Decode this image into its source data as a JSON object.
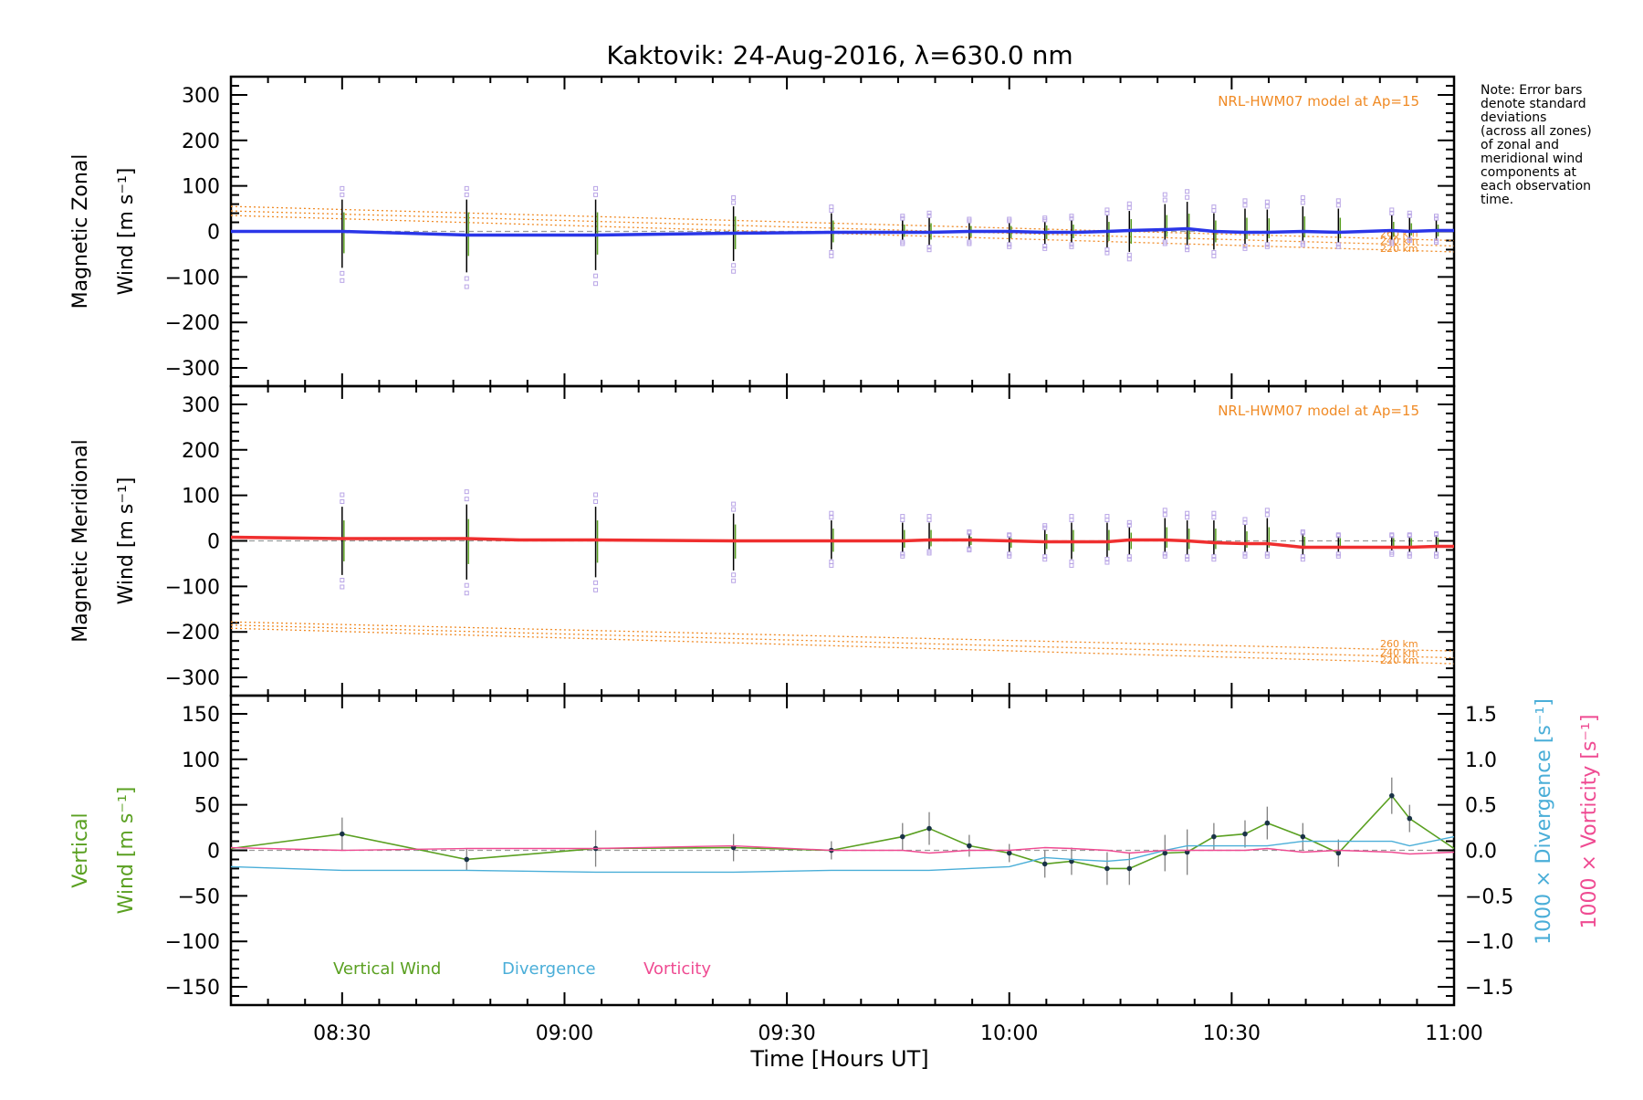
{
  "title": "Kaktovik: 24-Aug-2016, λ=630.0 nm",
  "xlabel": "Time [Hours UT]",
  "note_lines": [
    "Note: Error bars",
    "denote standard",
    "deviations",
    "(across all zones)",
    "of zonal and",
    "meridional wind",
    "components at",
    "each observation",
    "time."
  ],
  "model_label": "NRL-HWM07 model at Ap=15",
  "altitude_labels": [
    "260 km",
    "240 km",
    "220 km"
  ],
  "colors": {
    "zonal": "#2a36e8",
    "meridional": "#ef2f2f",
    "model": "#f08a24",
    "error_point": "#b9a5e6",
    "vertical": "#5aa021",
    "divergence": "#4aaed8",
    "vorticity": "#ef4b92",
    "marker": "#1a3347"
  },
  "chart_data": [
    {
      "type": "line",
      "panel": "zonal",
      "ylabel_line1": "Magnetic Zonal",
      "ylabel_line2": "Wind [m s⁻¹]",
      "xlim": [
        8.25,
        11.0
      ],
      "ylim": [
        -340,
        340
      ],
      "x_ticks": [
        "08:30",
        "09:00",
        "09:30",
        "10:00",
        "10:30",
        "11:00"
      ],
      "x_tick_values": [
        8.5,
        9.0,
        9.5,
        10.0,
        10.5,
        11.0
      ],
      "y_ticks": [
        300,
        200,
        100,
        0,
        -100,
        -200,
        -300
      ],
      "grid": false,
      "series": [
        {
          "name": "",
          "x": [
            8.25,
            8.5,
            8.78,
            9.07,
            9.38,
            9.6,
            9.76,
            9.82,
            9.91,
            10.0,
            10.08,
            10.15,
            10.22,
            10.27,
            10.35,
            10.4,
            10.46,
            10.53,
            10.58,
            10.66,
            10.74,
            10.86,
            10.9,
            10.96,
            11.0
          ],
          "y": [
            0,
            0,
            -8,
            -8,
            -4,
            -2,
            -2,
            -2,
            0,
            0,
            -2,
            -2,
            0,
            2,
            4,
            6,
            0,
            -2,
            -2,
            0,
            -2,
            2,
            0,
            2,
            2
          ]
        }
      ],
      "error_bars": {
        "x": [
          8.5,
          8.78,
          9.07,
          9.38,
          9.6,
          9.76,
          9.82,
          9.91,
          10.0,
          10.08,
          10.14,
          10.22,
          10.27,
          10.35,
          10.4,
          10.46,
          10.53,
          10.58,
          10.66,
          10.74,
          10.86,
          10.9,
          10.96
        ],
        "low": [
          -80,
          -90,
          -85,
          -65,
          -40,
          -20,
          -30,
          -20,
          -25,
          -28,
          -25,
          -35,
          -45,
          -20,
          -30,
          -40,
          -28,
          -25,
          -22,
          -25,
          -20,
          -15,
          -18
        ],
        "high": [
          70,
          70,
          70,
          55,
          40,
          25,
          30,
          20,
          20,
          22,
          25,
          35,
          45,
          60,
          65,
          40,
          50,
          48,
          55,
          50,
          35,
          30,
          25
        ]
      },
      "models": {
        "x": [
          8.25,
          11.0
        ],
        "260 km": [
          55,
          -20
        ],
        "240 km": [
          45,
          -32
        ],
        "220 km": [
          35,
          -45
        ]
      }
    },
    {
      "type": "line",
      "panel": "meridional",
      "ylabel_line1": "Magnetic Meridional",
      "ylabel_line2": "Wind [m s⁻¹]",
      "xlim": [
        8.25,
        11.0
      ],
      "ylim": [
        -340,
        340
      ],
      "y_ticks": [
        300,
        200,
        100,
        0,
        -100,
        -200,
        -300
      ],
      "grid": false,
      "series": [
        {
          "name": "",
          "x": [
            8.25,
            8.5,
            8.78,
            8.9,
            9.07,
            9.38,
            9.6,
            9.76,
            9.82,
            9.91,
            10.0,
            10.08,
            10.15,
            10.22,
            10.27,
            10.35,
            10.4,
            10.46,
            10.53,
            10.58,
            10.66,
            10.74,
            10.82,
            10.9,
            10.96,
            11.0
          ],
          "y": [
            8,
            5,
            5,
            2,
            2,
            0,
            0,
            0,
            2,
            2,
            0,
            -2,
            -2,
            -2,
            2,
            2,
            0,
            -4,
            -6,
            -6,
            -14,
            -14,
            -14,
            -14,
            -12,
            -12
          ]
        }
      ],
      "error_bars": {
        "x": [
          8.5,
          8.78,
          9.07,
          9.38,
          9.6,
          9.76,
          9.82,
          9.91,
          10.0,
          10.08,
          10.14,
          10.22,
          10.27,
          10.35,
          10.4,
          10.46,
          10.53,
          10.58,
          10.66,
          10.74,
          10.86,
          10.9,
          10.96
        ],
        "low": [
          -75,
          -85,
          -80,
          -65,
          -40,
          -25,
          -20,
          -15,
          -25,
          -30,
          -40,
          -35,
          -30,
          -25,
          -30,
          -30,
          -25,
          -25,
          -30,
          -25,
          -22,
          -25,
          -25
        ],
        "high": [
          75,
          80,
          75,
          60,
          45,
          40,
          40,
          15,
          10,
          25,
          40,
          40,
          30,
          50,
          45,
          45,
          35,
          50,
          15,
          10,
          10,
          10,
          12
        ]
      },
      "models": {
        "x": [
          8.25,
          11.0
        ],
        "260 km": [
          -178,
          -242
        ],
        "240 km": [
          -185,
          -257
        ],
        "220 km": [
          -192,
          -270
        ]
      }
    },
    {
      "type": "line",
      "panel": "vertical",
      "ylabel_line1": "Vertical",
      "ylabel_line2": "Wind [m s⁻¹]",
      "ylabel_right1": "1000 × Divergence [s⁻¹]",
      "ylabel_right2": "1000 × Vorticity [s⁻¹]",
      "xlim": [
        8.25,
        11.0
      ],
      "ylim": [
        -170,
        170
      ],
      "y_ticks": [
        150,
        100,
        50,
        0,
        -50,
        -100,
        -150
      ],
      "y2lim": [
        -1.7,
        1.7
      ],
      "y2_ticks": [
        "1.5",
        "1.0",
        "0.5",
        "0.0",
        "−0.5",
        "−1.0",
        "−1.5"
      ],
      "y2_tick_values": [
        1.5,
        1.0,
        0.5,
        0.0,
        -0.5,
        -1.0,
        -1.5
      ],
      "grid": false,
      "legend": [
        "Vertical Wind",
        "Divergence",
        "Vorticity"
      ],
      "series": [
        {
          "name": "Vertical Wind",
          "x": [
            8.25,
            8.5,
            8.78,
            9.07,
            9.38,
            9.6,
            9.76,
            9.82,
            9.91,
            10.0,
            10.08,
            10.14,
            10.22,
            10.27,
            10.35,
            10.4,
            10.46,
            10.53,
            10.58,
            10.66,
            10.74,
            10.86,
            10.9,
            11.0
          ],
          "y": [
            2,
            18,
            -10,
            2,
            3,
            0,
            15,
            24,
            5,
            -3,
            -15,
            -12,
            -20,
            -20,
            -3,
            -2,
            15,
            18,
            30,
            15,
            -3,
            60,
            35,
            2
          ],
          "err": [
            0,
            18,
            12,
            20,
            15,
            10,
            15,
            18,
            12,
            10,
            15,
            15,
            18,
            18,
            20,
            25,
            15,
            15,
            18,
            15,
            15,
            20,
            15,
            0
          ]
        },
        {
          "name": "Divergence",
          "x": [
            8.25,
            8.5,
            8.78,
            9.07,
            9.38,
            9.6,
            9.76,
            9.82,
            9.91,
            10.0,
            10.08,
            10.14,
            10.22,
            10.27,
            10.35,
            10.4,
            10.46,
            10.53,
            10.58,
            10.66,
            10.74,
            10.86,
            10.9,
            11.0
          ],
          "y": [
            -0.18,
            -0.22,
            -0.22,
            -0.24,
            -0.24,
            -0.22,
            -0.22,
            -0.22,
            -0.2,
            -0.18,
            -0.08,
            -0.1,
            -0.12,
            -0.1,
            0.0,
            0.05,
            0.05,
            0.05,
            0.05,
            0.1,
            0.1,
            0.1,
            0.05,
            0.15
          ]
        },
        {
          "name": "Vorticity",
          "x": [
            8.25,
            8.5,
            8.78,
            9.07,
            9.38,
            9.6,
            9.76,
            9.82,
            9.91,
            10.0,
            10.08,
            10.14,
            10.22,
            10.27,
            10.35,
            10.4,
            10.46,
            10.53,
            10.58,
            10.66,
            10.74,
            10.86,
            10.9,
            11.0
          ],
          "y": [
            0.03,
            0.0,
            0.02,
            0.02,
            0.05,
            0.0,
            0.0,
            -0.03,
            0.0,
            0.0,
            0.03,
            0.02,
            0.0,
            -0.03,
            0.0,
            0.0,
            0.0,
            0.0,
            0.02,
            -0.02,
            0.0,
            -0.02,
            -0.04,
            -0.02
          ]
        }
      ]
    }
  ]
}
